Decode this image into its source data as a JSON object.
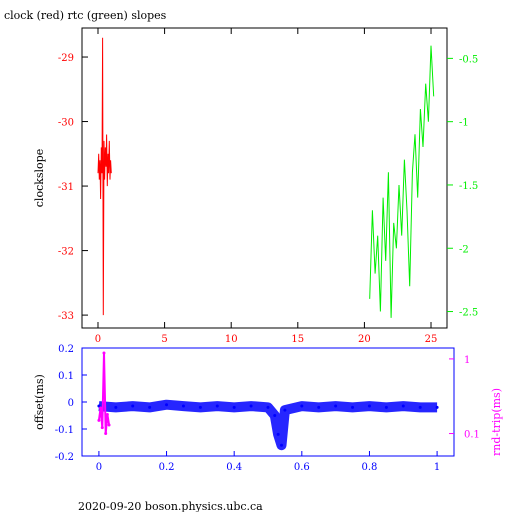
{
  "title": "clock (red) rtc (green) slopes",
  "footer": "2020-09-20  boson.physics.ubc.ca",
  "colors": {
    "clock": "#ff0000",
    "rtc": "#00ee00",
    "offset": "#0000ff",
    "roundtrip": "#ff00ff",
    "axis": "#000000"
  },
  "chart_data": [
    {
      "type": "line",
      "ylabel": "clockslope",
      "ylabel_right": "",
      "xlim": [
        -1.2,
        26.2
      ],
      "ylim": [
        -33.2,
        -28.55
      ],
      "ylim_right": [
        -2.63,
        -0.26
      ],
      "xticks": [
        "0",
        "5",
        "10",
        "15",
        "20",
        "25"
      ],
      "xtick_values": [
        0,
        5,
        10,
        15,
        20,
        25
      ],
      "yticks_left": [
        "-29",
        "-30",
        "-31",
        "-32",
        "-33"
      ],
      "ytick_values_left": [
        -29,
        -30,
        -31,
        -32,
        -33
      ],
      "yticks_right": [
        "-0.5",
        "-1",
        "-1.5",
        "-2",
        "-2.5"
      ],
      "ytick_values_right": [
        -0.5,
        -1,
        -1.5,
        -2,
        -2.5
      ],
      "series": [
        {
          "name": "clock",
          "axis": "left",
          "x": [
            0.0,
            0.05,
            0.1,
            0.15,
            0.2,
            0.25,
            0.3,
            0.35,
            0.4,
            0.45,
            0.5,
            0.55,
            0.6,
            0.65,
            0.7,
            0.75,
            0.8,
            0.85,
            0.9,
            0.95,
            1.0
          ],
          "y": [
            -30.8,
            -30.5,
            -30.9,
            -30.6,
            -31.2,
            -30.4,
            -30.8,
            -28.7,
            -33.0,
            -30.3,
            -30.9,
            -30.4,
            -30.7,
            -30.2,
            -31.0,
            -30.5,
            -30.8,
            -30.3,
            -30.9,
            -30.6,
            -30.8
          ]
        },
        {
          "name": "rtc",
          "axis": "right",
          "x": [
            20.4,
            20.6,
            20.8,
            21.0,
            21.2,
            21.4,
            21.6,
            21.8,
            22.0,
            22.2,
            22.4,
            22.6,
            22.8,
            23.0,
            23.2,
            23.4,
            23.6,
            23.8,
            24.0,
            24.2,
            24.4,
            24.6,
            24.8,
            25.0,
            25.2
          ],
          "y": [
            -2.4,
            -1.7,
            -2.2,
            -1.9,
            -2.5,
            -1.6,
            -2.1,
            -1.4,
            -2.55,
            -1.8,
            -2.0,
            -1.5,
            -1.9,
            -1.3,
            -1.7,
            -2.3,
            -1.4,
            -1.1,
            -1.6,
            -0.9,
            -1.2,
            -0.7,
            -1.0,
            -0.4,
            -0.8
          ]
        }
      ]
    },
    {
      "type": "scatter",
      "ylabel": "offset(ms)",
      "ylabel_right": "rnd-trip(ms)",
      "xlim": [
        -0.05,
        1.05
      ],
      "ylim": [
        -0.2,
        0.2
      ],
      "xticks": [
        "0",
        "0.2",
        "0.4",
        "0.6",
        "0.8",
        "1"
      ],
      "xtick_values": [
        0,
        0.2,
        0.4,
        0.6,
        0.8,
        1
      ],
      "yticks_left": [
        "0.2",
        "0.1",
        "0",
        "-0.1",
        "-0.2"
      ],
      "ytick_values_left": [
        0.2,
        0.1,
        0,
        -0.1,
        -0.2
      ],
      "yticks_right": [
        "1",
        "0.1"
      ],
      "ytick_values_right": [
        1,
        0.1
      ],
      "right_scale": "log",
      "ylim_right": [
        0.05,
        1.4
      ],
      "series": [
        {
          "name": "offset",
          "x": [
            0.0,
            0.05,
            0.1,
            0.15,
            0.2,
            0.25,
            0.3,
            0.35,
            0.4,
            0.45,
            0.5,
            0.52,
            0.53,
            0.54,
            0.55,
            0.6,
            0.65,
            0.7,
            0.75,
            0.8,
            0.85,
            0.9,
            0.95,
            1.0
          ],
          "y": [
            -0.015,
            -0.02,
            -0.015,
            -0.02,
            -0.01,
            -0.015,
            -0.02,
            -0.015,
            -0.02,
            -0.015,
            -0.02,
            -0.05,
            -0.12,
            -0.16,
            -0.03,
            -0.015,
            -0.02,
            -0.015,
            -0.02,
            -0.015,
            -0.02,
            -0.015,
            -0.02,
            -0.02
          ]
        },
        {
          "name": "rnd-trip",
          "axis": "right",
          "x": [
            0.0,
            0.005,
            0.01,
            0.015,
            0.02,
            0.025,
            0.03
          ],
          "y": [
            0.15,
            0.22,
            0.12,
            1.2,
            0.1,
            0.18,
            0.13
          ]
        }
      ]
    }
  ]
}
